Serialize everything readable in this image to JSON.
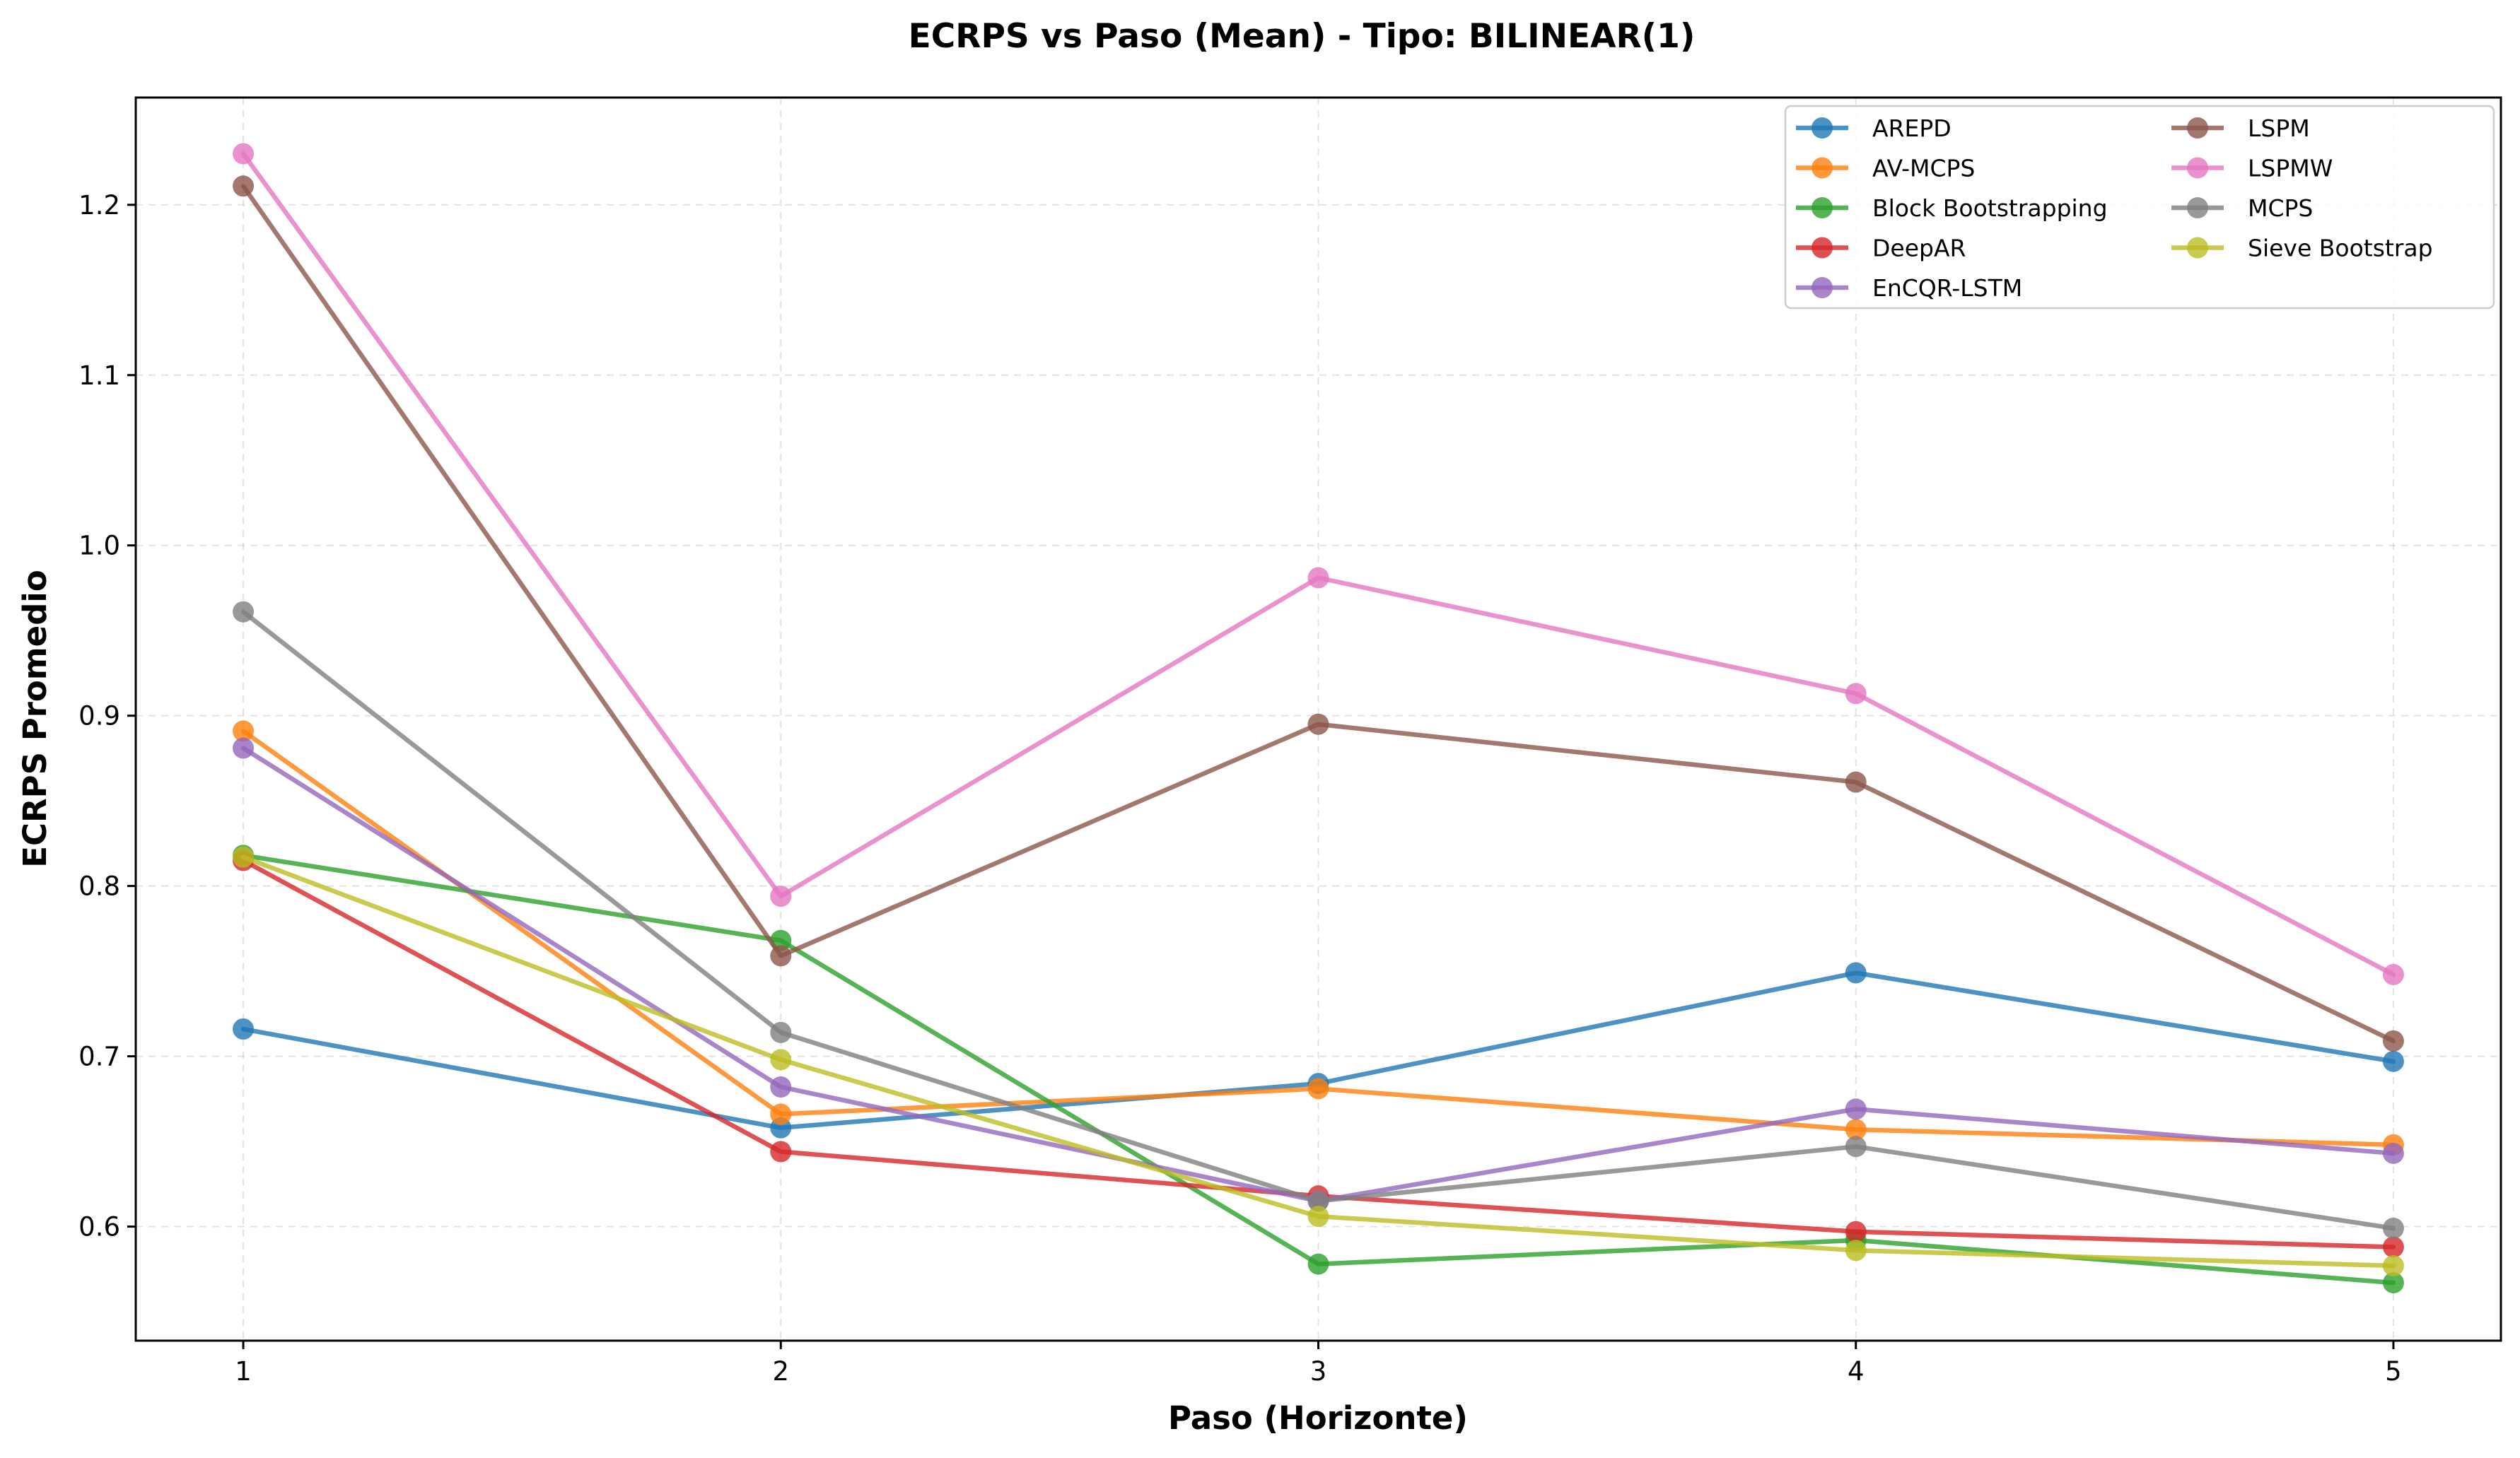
{
  "chart_data": {
    "type": "line",
    "title": "ECRPS vs Paso (Mean) - Tipo: BILINEAR(1)",
    "xlabel": "Paso (Horizonte)",
    "ylabel": "ECRPS Promedio",
    "x": [
      1,
      2,
      3,
      4,
      5
    ],
    "x_tick_labels": [
      "1",
      "2",
      "3",
      "4",
      "5"
    ],
    "xlim": [
      0.8,
      5.2
    ],
    "ylim": [
      0.533,
      1.263
    ],
    "y_ticks": [
      0.6,
      0.7,
      0.8,
      0.9,
      1.0,
      1.1,
      1.2
    ],
    "y_tick_labels": [
      "0.6",
      "0.7",
      "0.8",
      "0.9",
      "1.0",
      "1.1",
      "1.2"
    ],
    "grid": true,
    "legend_position": "top-right",
    "legend_columns": 2,
    "series": [
      {
        "name": "AREPD",
        "color": "#1f77b4",
        "values": [
          0.716,
          0.658,
          0.684,
          0.749,
          0.697
        ]
      },
      {
        "name": "AV-MCPS",
        "color": "#ff7f0e",
        "values": [
          0.891,
          0.666,
          0.681,
          0.657,
          0.648
        ]
      },
      {
        "name": "Block Bootstrapping",
        "color": "#2ca02c",
        "values": [
          0.818,
          0.768,
          0.578,
          0.592,
          0.567
        ]
      },
      {
        "name": "DeepAR",
        "color": "#d62728",
        "values": [
          0.815,
          0.644,
          0.618,
          0.597,
          0.588
        ]
      },
      {
        "name": "EnCQR-LSTM",
        "color": "#9467bd",
        "values": [
          0.881,
          0.682,
          0.615,
          0.669,
          0.643
        ]
      },
      {
        "name": "LSPM",
        "color": "#8c564b",
        "values": [
          1.211,
          0.759,
          0.895,
          0.861,
          0.709
        ]
      },
      {
        "name": "LSPMW",
        "color": "#e377c2",
        "values": [
          1.23,
          0.794,
          0.981,
          0.913,
          0.748
        ]
      },
      {
        "name": "MCPS",
        "color": "#7f7f7f",
        "values": [
          0.961,
          0.714,
          0.615,
          0.647,
          0.599
        ]
      },
      {
        "name": "Sieve Bootstrap",
        "color": "#bcbd22",
        "values": [
          0.817,
          0.698,
          0.606,
          0.586,
          0.577
        ]
      }
    ]
  }
}
